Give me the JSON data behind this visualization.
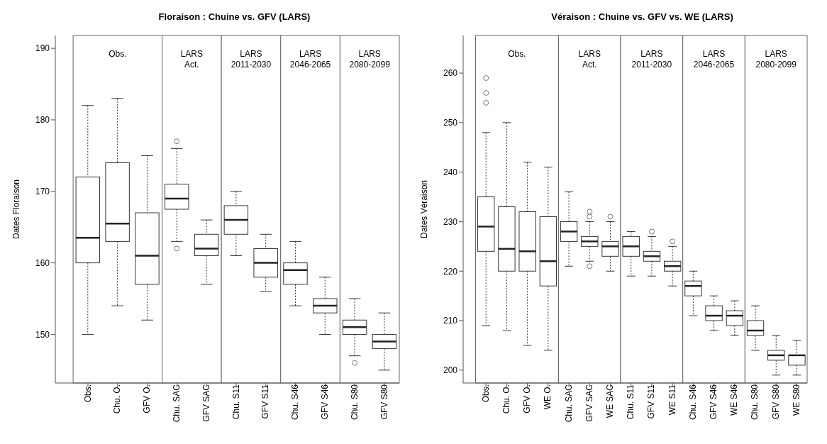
{
  "chart_data": [
    {
      "type": "box",
      "title": "Floraison : Chuine vs. GFV (LARS)",
      "ylabel": "Dates Floraison",
      "categories": [
        "Obs.",
        "Chu. O.",
        "GFV O.",
        "Chu. SAC",
        "GFV SAC",
        "Chu. S11",
        "GFV S11",
        "Chu. S46",
        "GFV S46",
        "Chu. S80",
        "GFV S80"
      ],
      "boxes": [
        {
          "low": 150,
          "q1": 160,
          "median": 163.5,
          "q3": 172,
          "high": 182
        },
        {
          "low": 154,
          "q1": 163,
          "median": 165.5,
          "q3": 174,
          "high": 183
        },
        {
          "low": 152,
          "q1": 157,
          "median": 161,
          "q3": 167,
          "high": 175
        },
        {
          "low": 163,
          "q1": 167.5,
          "median": 169,
          "q3": 171,
          "high": 176,
          "outliers": [
            177,
            162
          ]
        },
        {
          "low": 157,
          "q1": 161,
          "median": 162,
          "q3": 164,
          "high": 166
        },
        {
          "low": 161,
          "q1": 164,
          "median": 166,
          "q3": 168,
          "high": 170
        },
        {
          "low": 156,
          "q1": 158,
          "median": 160,
          "q3": 162,
          "high": 164
        },
        {
          "low": 154,
          "q1": 157,
          "median": 159,
          "q3": 160,
          "high": 163
        },
        {
          "low": 150,
          "q1": 153,
          "median": 154,
          "q3": 155,
          "high": 158
        },
        {
          "low": 147,
          "q1": 150,
          "median": 151,
          "q3": 152,
          "high": 155,
          "outliers": [
            146
          ]
        },
        {
          "low": 145,
          "q1": 148,
          "median": 149,
          "q3": 150,
          "high": 153
        }
      ],
      "bands": [
        {
          "axis": "x",
          "from": "Obs.",
          "to": "GFV O.",
          "label": "Obs.",
          "color": "#ffffff"
        },
        {
          "axis": "x",
          "from": "Chu. SAC",
          "to": "GFV SAC",
          "label": "LARS\nAct.",
          "color": "#ffffff"
        },
        {
          "axis": "x",
          "from": "Chu. S11",
          "to": "GFV S11",
          "label": "LARS\n2011-2030",
          "color": "#ffffff"
        },
        {
          "axis": "x",
          "from": "Chu. S46",
          "to": "GFV S46",
          "label": "LARS\n2046-2065",
          "color": "#ffffff"
        },
        {
          "axis": "x",
          "from": "Chu. S80",
          "to": "GFV S80",
          "label": "LARS\n2080-2099",
          "color": "#ffffff"
        }
      ],
      "ylim": [
        143.2,
        191.8
      ],
      "yticks": [
        150,
        160,
        170,
        180,
        190
      ]
    },
    {
      "type": "box",
      "title": "Véraison : Chuine vs. GFV vs. WE (LARS)",
      "ylabel": "Dates Véraison",
      "categories": [
        "Obs.",
        "Chu. O.",
        "GFV O.",
        "WE O.",
        "Chu. SAC",
        "GFV SAC",
        "WE SAC",
        "Chu. S11",
        "GFV S11",
        "WE S11",
        "Chu. S46",
        "GFV S46",
        "WE S46",
        "Chu. S80",
        "GFV S80",
        "WE S80"
      ],
      "boxes": [
        {
          "low": 209,
          "q1": 224,
          "median": 229,
          "q3": 235,
          "high": 248,
          "outliers": [
            254,
            256,
            259
          ]
        },
        {
          "low": 208,
          "q1": 220,
          "median": 224.5,
          "q3": 233,
          "high": 250
        },
        {
          "low": 205,
          "q1": 220,
          "median": 224,
          "q3": 232,
          "high": 242
        },
        {
          "low": 204,
          "q1": 217,
          "median": 222,
          "q3": 231,
          "high": 241
        },
        {
          "low": 221,
          "q1": 226,
          "median": 228,
          "q3": 230,
          "high": 236
        },
        {
          "low": 222,
          "q1": 225,
          "median": 226,
          "q3": 227,
          "high": 230,
          "outliers": [
            231,
            232,
            221
          ]
        },
        {
          "low": 220,
          "q1": 223,
          "median": 225,
          "q3": 226,
          "high": 230,
          "outliers": [
            231
          ]
        },
        {
          "low": 219,
          "q1": 223,
          "median": 225,
          "q3": 227,
          "high": 228
        },
        {
          "low": 219,
          "q1": 222,
          "median": 223,
          "q3": 224,
          "high": 227,
          "outliers": [
            228
          ]
        },
        {
          "low": 217,
          "q1": 220,
          "median": 221,
          "q3": 222,
          "high": 225,
          "outliers": [
            226
          ]
        },
        {
          "low": 211,
          "q1": 215,
          "median": 217,
          "q3": 218,
          "high": 220
        },
        {
          "low": 208,
          "q1": 210,
          "median": 211,
          "q3": 213,
          "high": 215
        },
        {
          "low": 207,
          "q1": 209,
          "median": 211,
          "q3": 212,
          "high": 214
        },
        {
          "low": 204,
          "q1": 207,
          "median": 208,
          "q3": 210,
          "high": 213
        },
        {
          "low": 199,
          "q1": 202,
          "median": 203,
          "q3": 204,
          "high": 207
        },
        {
          "low": 199,
          "q1": 201,
          "median": 203,
          "q3": 203,
          "high": 206
        }
      ],
      "bands": [
        {
          "axis": "x",
          "from": "Obs.",
          "to": "WE O.",
          "label": "Obs.",
          "color": "#ffffff"
        },
        {
          "axis": "x",
          "from": "Chu. SAC",
          "to": "WE SAC",
          "label": "LARS\nAct.",
          "color": "#ffffff"
        },
        {
          "axis": "x",
          "from": "Chu. S11",
          "to": "WE S11",
          "label": "LARS\n2011-2030",
          "color": "#ffffff"
        },
        {
          "axis": "x",
          "from": "Chu. S46",
          "to": "WE S46",
          "label": "LARS\n2046-2065",
          "color": "#ffffff"
        },
        {
          "axis": "x",
          "from": "Chu. S80",
          "to": "WE S80",
          "label": "LARS\n2080-2099",
          "color": "#ffffff"
        }
      ],
      "ylim": [
        197.4,
        267.6
      ],
      "yticks": [
        200,
        210,
        220,
        230,
        240,
        250,
        260
      ]
    }
  ]
}
